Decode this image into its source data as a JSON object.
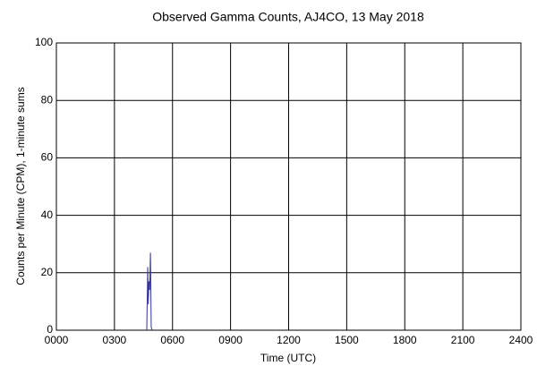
{
  "chart_data": {
    "type": "line",
    "title": "Observed Gamma Counts, AJ4CO, 13 May 2018",
    "x_label": "Time (UTC)",
    "y_label": "Counts per Minute (CPM), 1-minute sums",
    "x": [
      4.67,
      4.72,
      4.75,
      4.78,
      4.82,
      4.86,
      4.9,
      4.95
    ],
    "series": [
      {
        "color": "#33339a",
        "values": [
          0,
          22,
          9,
          17,
          14,
          27,
          1,
          0
        ]
      }
    ],
    "xlim": [
      0,
      24
    ],
    "xticks": [
      {
        "value": 0,
        "label": "0000"
      },
      {
        "value": 3,
        "label": "0300"
      },
      {
        "value": 6,
        "label": "0600"
      },
      {
        "value": 9,
        "label": "0900"
      },
      {
        "value": 12,
        "label": "1200"
      },
      {
        "value": 15,
        "label": "1500"
      },
      {
        "value": 18,
        "label": "1800"
      },
      {
        "value": 21,
        "label": "2100"
      },
      {
        "value": 24,
        "label": "2400"
      }
    ],
    "ylim": [
      0,
      100
    ],
    "yticks": [
      0,
      20,
      40,
      60,
      80,
      100
    ],
    "grid": true
  }
}
